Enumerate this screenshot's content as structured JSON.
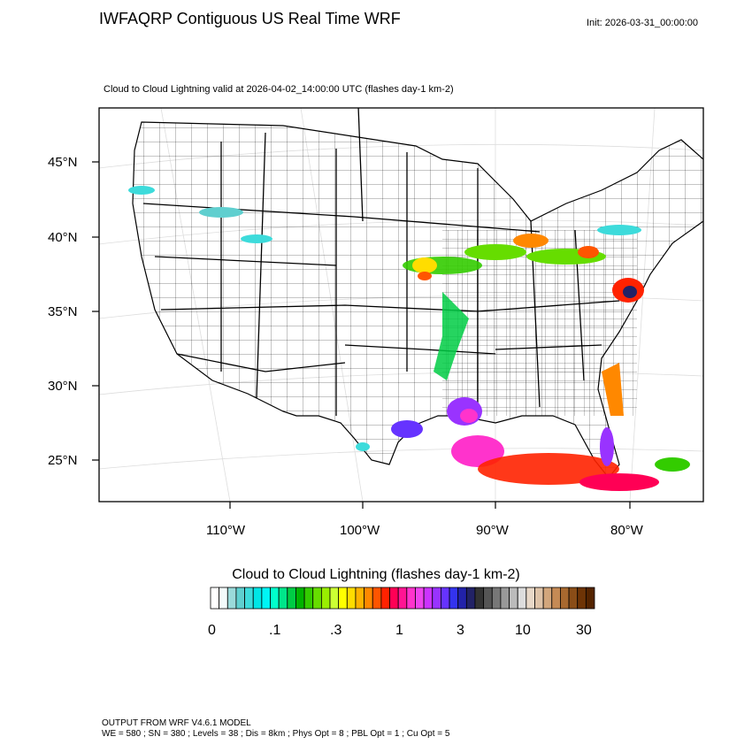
{
  "header": {
    "title": "IWFAQRP Contiguous US Real Time WRF",
    "init": "Init: 2026-03-31_00:00:00",
    "subtitle": "Cloud to Cloud Lightning valid at 2026-04-02_14:00:00 UTC   (flashes day-1 km-2)"
  },
  "map": {
    "projection": "Lambert Conformal",
    "boundaries": [
      "states",
      "counties",
      "coastlines"
    ],
    "lat_labels": [
      "45°N",
      "40°N",
      "35°N",
      "30°N",
      "25°N"
    ],
    "lon_labels": [
      "110°W",
      "100°W",
      "90°W",
      "80°W"
    ],
    "field": "Cloud to Cloud Lightning",
    "field_regions": [
      "Upper Midwest / Great Lakes band",
      "Mid-Mississippi valley",
      "Chesapeake / Mid-Atlantic coast",
      "Louisiana coast",
      "South Texas coast",
      "Gulf of Mexico",
      "Florida peninsula",
      "Western Atlantic",
      "Rocky Mountain scattered cells"
    ]
  },
  "colorbar": {
    "title": "Cloud to Cloud Lightning  (flashes day-1 km-2)",
    "tick_labels": [
      "0",
      ".1",
      ".3",
      "1",
      "3",
      "10",
      "30"
    ],
    "colors": [
      "#ffffff",
      "#f3fbfb",
      "#9adada",
      "#5fcfcf",
      "#3ddbdb",
      "#00e5e5",
      "#00f5f5",
      "#00ffcc",
      "#00e68a",
      "#00cc44",
      "#00b300",
      "#33cc00",
      "#66dd00",
      "#99ee00",
      "#ccff33",
      "#ffff00",
      "#ffdd00",
      "#ffb300",
      "#ff8800",
      "#ff5500",
      "#ff2200",
      "#ff0055",
      "#ff1493",
      "#ff33cc",
      "#ee44ee",
      "#cc33ff",
      "#9933ff",
      "#6633ff",
      "#3333ee",
      "#2222aa",
      "#222266",
      "#333333",
      "#555555",
      "#777777",
      "#999999",
      "#bbbbbb",
      "#dddddd",
      "#e8d8c8",
      "#dec3a8",
      "#d2a67c",
      "#c58a55",
      "#a8692f",
      "#8a4d17",
      "#6e3406",
      "#542400"
    ]
  },
  "footer": {
    "line1": "OUTPUT FROM WRF V4.6.1 MODEL",
    "line2": "WE = 580 ; SN = 380 ; Levels = 38 ; Dis = 8km ; Phys Opt = 8 ; PBL Opt = 1 ; Cu Opt = 5"
  }
}
